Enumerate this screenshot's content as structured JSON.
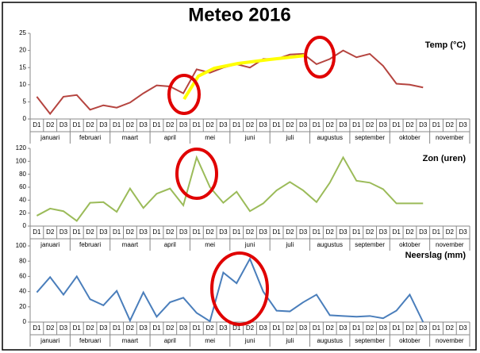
{
  "chart_data": [
    {
      "type": "line",
      "title": "Meteo 2016",
      "categories": [
        "D1",
        "D2",
        "D3",
        "D1",
        "D2",
        "D3",
        "D1",
        "D2",
        "D3",
        "D1",
        "D2",
        "D3",
        "D1",
        "D2",
        "D3",
        "D1",
        "D2",
        "D3",
        "D1",
        "D2",
        "D3",
        "D1",
        "D2",
        "D3",
        "D1",
        "D2",
        "D3",
        "D1",
        "D2",
        "D3",
        "D1",
        "D2",
        "D3"
      ],
      "groups": [
        "januari",
        "februari",
        "maart",
        "april",
        "mei",
        "juni",
        "juli",
        "augustus",
        "september",
        "oktober",
        "november"
      ],
      "series": [
        {
          "name": "Temp (°C)",
          "color": "#b5443f",
          "values": [
            6.5,
            1.5,
            6.5,
            7,
            2.7,
            4,
            3.3,
            4.8,
            7.5,
            9.8,
            9.5,
            7.5,
            14.5,
            13.5,
            15,
            16,
            15,
            17.5,
            17.5,
            18.8,
            19,
            16,
            17.5,
            20,
            18,
            19,
            15.5,
            10.3,
            10,
            9.2,
            null,
            null,
            null
          ]
        }
      ],
      "ylim": [
        0,
        25
      ],
      "yticks": [
        0,
        5,
        10,
        15,
        20,
        25
      ]
    },
    {
      "type": "line",
      "categories": [
        "D1",
        "D2",
        "D3",
        "D1",
        "D2",
        "D3",
        "D1",
        "D2",
        "D3",
        "D1",
        "D2",
        "D3",
        "D1",
        "D2",
        "D3",
        "D1",
        "D2",
        "D3",
        "D1",
        "D2",
        "D3",
        "D1",
        "D2",
        "D3",
        "D1",
        "D2",
        "D3",
        "D1",
        "D2",
        "D3",
        "D1",
        "D2",
        "D3"
      ],
      "groups": [
        "januari",
        "februari",
        "maart",
        "april",
        "mei",
        "juni",
        "juli",
        "augustus",
        "september",
        "oktober",
        "november"
      ],
      "series": [
        {
          "name": "Zon (uren)",
          "color": "#9bbb59",
          "values": [
            16,
            27,
            23,
            8,
            36,
            37,
            22,
            58,
            28,
            50,
            58,
            32,
            106,
            60,
            36,
            53,
            23,
            35,
            55,
            68,
            55,
            37,
            67,
            106,
            70,
            67,
            57,
            35,
            35,
            35,
            null,
            null,
            null
          ]
        }
      ],
      "ylim": [
        0,
        120
      ],
      "yticks": [
        0,
        20,
        40,
        60,
        80,
        100,
        120
      ]
    },
    {
      "type": "line",
      "categories": [
        "D1",
        "D2",
        "D3",
        "D1",
        "D2",
        "D3",
        "D1",
        "D2",
        "D3",
        "D1",
        "D2",
        "D3",
        "D1",
        "D2",
        "D3",
        "D1",
        "D2",
        "D3",
        "D1",
        "D2",
        "D3",
        "D1",
        "D2",
        "D3",
        "D1",
        "D2",
        "D3",
        "D1",
        "D2",
        "D3",
        "D1",
        "D2",
        "D3"
      ],
      "groups": [
        "januari",
        "februari",
        "maart",
        "april",
        "mei",
        "juni",
        "juli",
        "augustus",
        "september",
        "oktober",
        "november"
      ],
      "series": [
        {
          "name": "Neerslag (mm)",
          "color": "#4a7ebb",
          "values": [
            39,
            59,
            36,
            60,
            30,
            22,
            41,
            2,
            39,
            7,
            26,
            32,
            12,
            1,
            65,
            51,
            83,
            40,
            15,
            14,
            26,
            36,
            9,
            8,
            7,
            8,
            5,
            15,
            36,
            0,
            null,
            null,
            null
          ]
        }
      ],
      "ylim": [
        0,
        100
      ],
      "yticks": [
        0,
        20,
        40,
        60,
        80,
        100
      ]
    }
  ]
}
